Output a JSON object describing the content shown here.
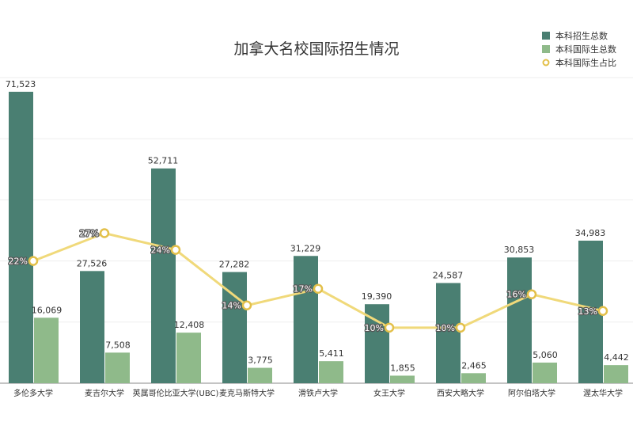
{
  "chart_data": {
    "type": "bar",
    "title": "加拿大名校国际招生情况",
    "categories": [
      "多伦多大学",
      "麦吉尔大学",
      "英属哥伦比亚大学(UBC)",
      "麦克马斯特大学",
      "滑铁卢大学",
      "女王大学",
      "西安大略大学",
      "阿尔伯塔大学",
      "渥太华大学"
    ],
    "series": [
      {
        "name": "本科招生总数",
        "type": "bar",
        "color": "#4a7f72",
        "values": [
          71523,
          27526,
          52711,
          27282,
          31229,
          19390,
          24587,
          30853,
          34983
        ],
        "labels": [
          "71,523",
          "27,526",
          "52,711",
          "27,282",
          "31,229",
          "19,390",
          "24,587",
          "30,853",
          "34,983"
        ]
      },
      {
        "name": "本科国际生总数",
        "type": "bar",
        "color": "#8fba8a",
        "values": [
          16069,
          7508,
          12408,
          3775,
          5411,
          1855,
          2465,
          5060,
          4442
        ],
        "labels": [
          "16,069",
          "7,508",
          "12,408",
          "3,775",
          "5,411",
          "1,855",
          "2,465",
          "5,060",
          "4,442"
        ]
      },
      {
        "name": "本科国际生占比",
        "type": "line",
        "color": "#f0d97a",
        "values": [
          22,
          27,
          24,
          14,
          17,
          10,
          10,
          16,
          13
        ],
        "labels": [
          "22%",
          "27%",
          "24%",
          "14%",
          "17%",
          "10%",
          "10%",
          "16%",
          "13%"
        ]
      }
    ],
    "ylim": [
      0,
      75000
    ],
    "ylim_percent": [
      0,
      55
    ],
    "grid": true,
    "legend": "top-right"
  }
}
